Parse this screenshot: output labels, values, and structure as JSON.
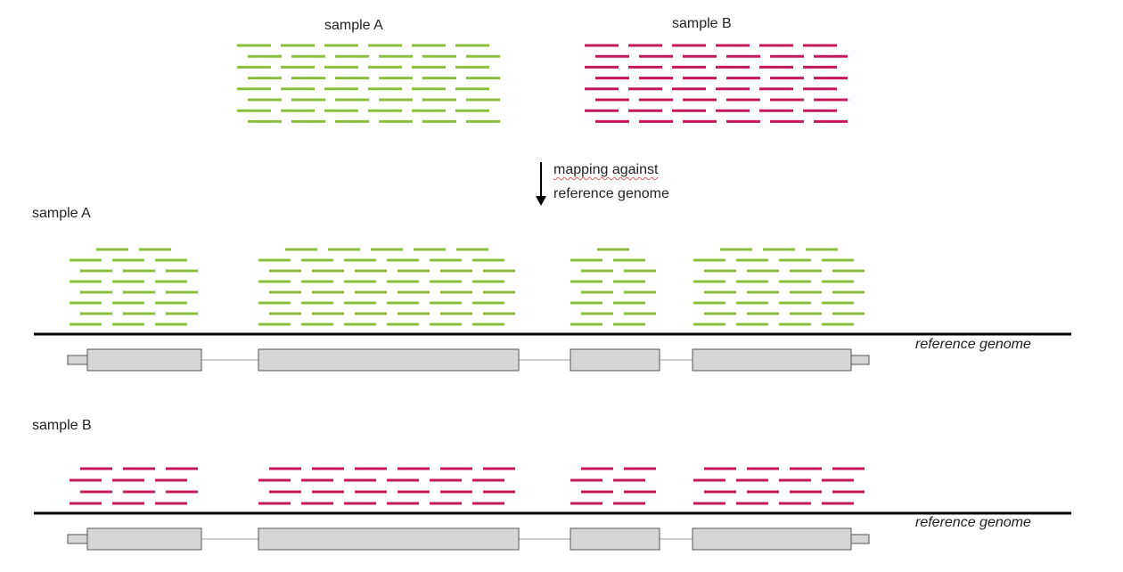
{
  "colors": {
    "sample_a": "#8cbf3f",
    "sample_b": "#c2185b",
    "genome_line": "#000000",
    "exon_fill": "#d6d6d6",
    "exon_stroke": "#555555",
    "intron": "#b0b0b0"
  },
  "top": {
    "sample_a_label": "sample A",
    "sample_b_label": "sample B"
  },
  "mapping": {
    "line1": "mapping against",
    "line2": "reference genome",
    "arrow_icon": "down-arrow-icon"
  },
  "panels": [
    {
      "label": "sample A",
      "genome_label": "reference genome",
      "series": "sample_a"
    },
    {
      "label": "sample B",
      "genome_label": "reference genome",
      "series": "sample_b"
    }
  ]
}
